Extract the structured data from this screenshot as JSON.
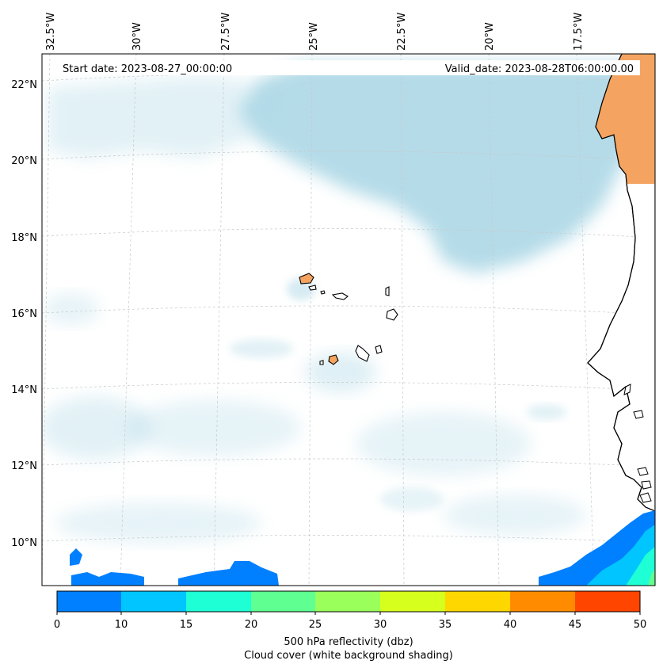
{
  "map": {
    "start_date_label": "Start date: 2023-08-27_00:00:00",
    "valid_date_label": "Valid_date: 2023-08-28T06:00:00.00",
    "lon_labels": [
      "32.5°W",
      "30°W",
      "27.5°W",
      "25°W",
      "22.5°W",
      "20°W",
      "17.5°W"
    ],
    "lat_labels": [
      "22°N",
      "20°N",
      "18°N",
      "16°N",
      "14°N",
      "12°N",
      "10°N"
    ],
    "land_color": "#f4a460",
    "cloud_color": "#add8e6"
  },
  "colorbar": {
    "ticks": [
      "0",
      "10",
      "15",
      "20",
      "25",
      "30",
      "35",
      "40",
      "45",
      "50"
    ],
    "colors": [
      "#007fff",
      "#00c5ff",
      "#1fffd5",
      "#5fff91",
      "#9aff5a",
      "#d6ff1e",
      "#ffd700",
      "#ff8c00",
      "#ff4500"
    ],
    "label_line1": "500 hPa reflectivity (dbz)",
    "label_line2": "Cloud cover (white background shading)"
  }
}
